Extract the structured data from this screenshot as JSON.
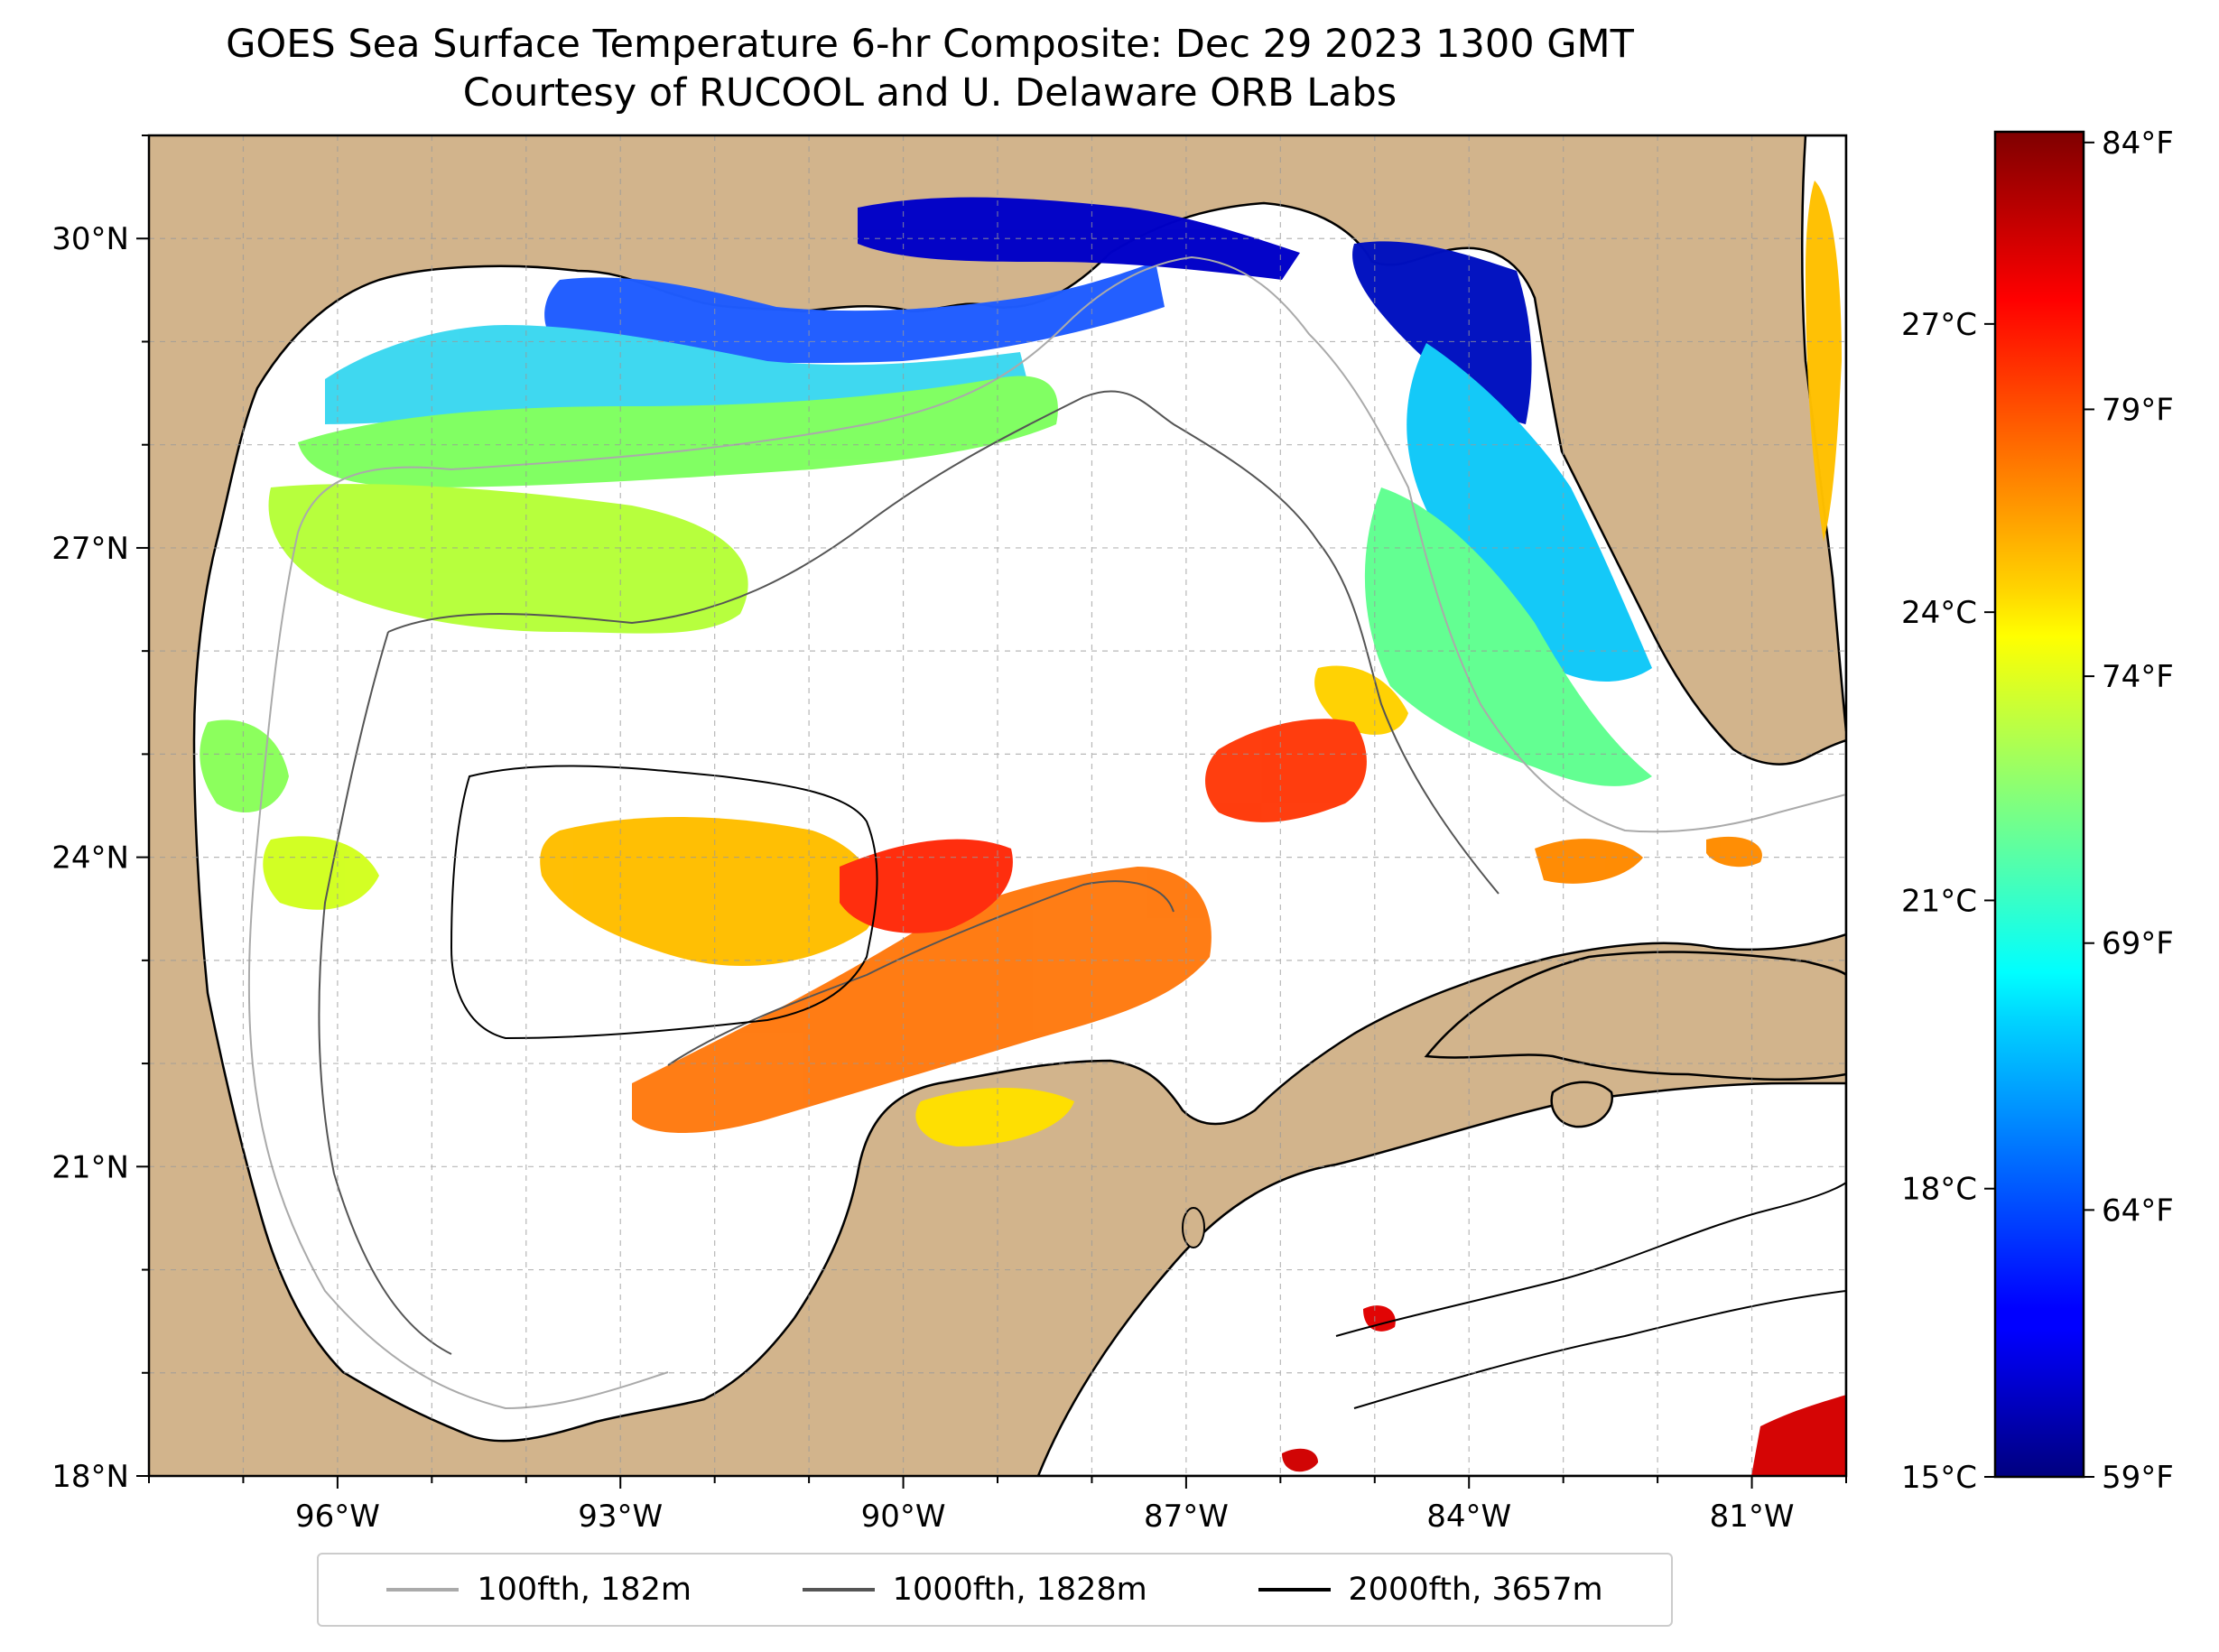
{
  "title": {
    "line1": "GOES Sea Surface Temperature 6-hr Composite: Dec 29 2023 1300 GMT",
    "line2": "Courtesy of RUCOOL and U. Delaware ORB Labs"
  },
  "map": {
    "lon_range": [
      -98,
      -80
    ],
    "lat_range": [
      18,
      31
    ],
    "lon_ticks": [
      {
        "value": -96,
        "label": "96°W"
      },
      {
        "value": -93,
        "label": "93°W"
      },
      {
        "value": -90,
        "label": "90°W"
      },
      {
        "value": -87,
        "label": "87°W"
      },
      {
        "value": -84,
        "label": "84°W"
      },
      {
        "value": -81,
        "label": "81°W"
      }
    ],
    "lat_ticks": [
      {
        "value": 18,
        "label": "18°N"
      },
      {
        "value": 21,
        "label": "21°N"
      },
      {
        "value": 24,
        "label": "24°N"
      },
      {
        "value": 27,
        "label": "27°N"
      },
      {
        "value": 30,
        "label": "30°N"
      }
    ],
    "land_color": "#d2b48c",
    "ocean_color": "#ffffff",
    "grid": true
  },
  "colorbar": {
    "celsius_range": [
      15,
      29
    ],
    "celsius_ticks": [
      {
        "value": 15,
        "label": "15°C"
      },
      {
        "value": 18,
        "label": "18°C"
      },
      {
        "value": 21,
        "label": "21°C"
      },
      {
        "value": 24,
        "label": "24°C"
      },
      {
        "value": 27,
        "label": "27°C"
      }
    ],
    "fahrenheit_ticks": [
      {
        "value": 59,
        "label": "59°F"
      },
      {
        "value": 64,
        "label": "64°F"
      },
      {
        "value": 69,
        "label": "69°F"
      },
      {
        "value": 74,
        "label": "74°F"
      },
      {
        "value": 79,
        "label": "79°F"
      },
      {
        "value": 84,
        "label": "84°F"
      }
    ],
    "colormap": "jet"
  },
  "legend": {
    "entries": [
      {
        "label": "100fth, 182m",
        "color": "#aaaaaa"
      },
      {
        "label": "1000fth, 1828m",
        "color": "#555555"
      },
      {
        "label": "2000fth, 3657m",
        "color": "#000000"
      }
    ]
  }
}
